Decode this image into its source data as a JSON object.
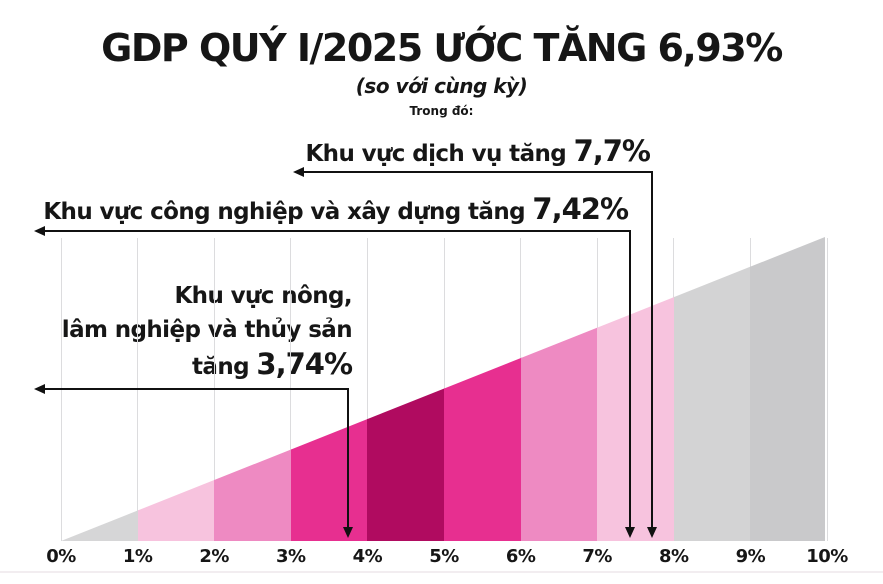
{
  "header": {
    "title": "GDP QUÝ I/2025 ƯỚC TĂNG 6,93%",
    "subtitle": "(so với cùng kỳ)",
    "note": "Trong đó:"
  },
  "annotations": {
    "services": {
      "text": "Khu vực dịch vụ tăng",
      "value_label": "7,7%",
      "pct": 7.7
    },
    "industry": {
      "text": "Khu vực công nghiệp và xây dựng tăng",
      "value_label": "7,42%",
      "pct": 7.42
    },
    "agriculture": {
      "line1": "Khu vực nông,",
      "line2": "lâm nghiệp và thủy sản",
      "line3": "tăng",
      "value_label": "3,74%",
      "pct": 3.74
    }
  },
  "chart_data": {
    "type": "area",
    "title": "GDP QUÝ I/2025 ƯỚC TĂNG 6,93%",
    "subtitle": "(so với cùng kỳ)",
    "note": "Trong đó:",
    "headline_value": 6.93,
    "headline_value_label": "6,93%",
    "x_range": [
      0,
      10
    ],
    "x_ticks": [
      "0%",
      "1%",
      "2%",
      "3%",
      "4%",
      "5%",
      "6%",
      "7%",
      "8%",
      "9%",
      "10%"
    ],
    "grid": true,
    "legend": "none",
    "series": [
      {
        "name": "Khu vực dịch vụ",
        "value": 7.7,
        "value_label": "7,7%"
      },
      {
        "name": "Khu vực công nghiệp và xây dựng",
        "value": 7.42,
        "value_label": "7,42%"
      },
      {
        "name": "Khu vực nông, lâm nghiệp và thủy sản",
        "value": 3.74,
        "value_label": "3,74%"
      }
    ],
    "bands": [
      {
        "from": 0,
        "to": 1,
        "color": "#d6d6d7"
      },
      {
        "from": 1,
        "to": 2,
        "color": "#f7c3de"
      },
      {
        "from": 2,
        "to": 3,
        "color": "#ee8ac2"
      },
      {
        "from": 3,
        "to": 4,
        "color": "#e72f90"
      },
      {
        "from": 4,
        "to": 5,
        "color": "#b00b60"
      },
      {
        "from": 5,
        "to": 6,
        "color": "#e72f90"
      },
      {
        "from": 6,
        "to": 7,
        "color": "#ee8ac2"
      },
      {
        "from": 7,
        "to": 8,
        "color": "#f7c3de"
      },
      {
        "from": 8,
        "to": 9,
        "color": "#d3d3d4"
      },
      {
        "from": 9,
        "to": 10,
        "color": "#c9c9cb"
      }
    ]
  }
}
